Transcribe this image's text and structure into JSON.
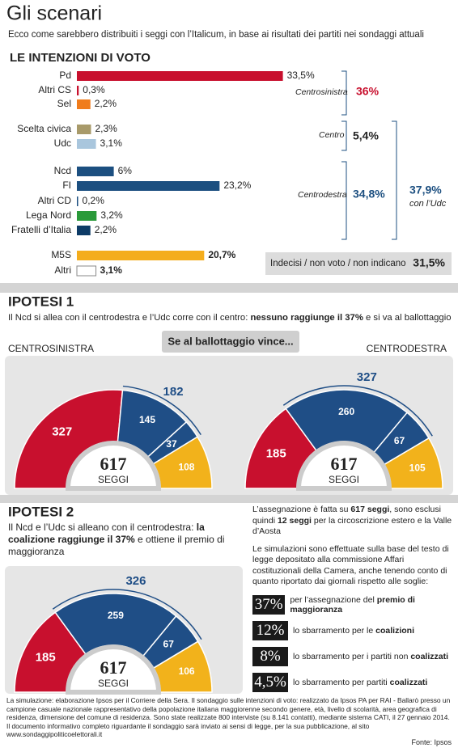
{
  "header": {
    "title": "Gli scenari",
    "subtitle": "Ecco come sarebbero distribuiti i seggi con l’Italicum, in base ai risultati dei partiti nei sondaggi attuali"
  },
  "chart_data": [
    {
      "type": "bar",
      "title": "LE INTENZIONI DI VOTO",
      "categories": [
        "Pd",
        "Altri CS",
        "Sel",
        "Scelta civica",
        "Udc",
        "Ncd",
        "FI",
        "Altri CD",
        "Lega Nord",
        "Fratelli d’Italia",
        "M5S",
        "Altri"
      ],
      "values": [
        33.5,
        0.3,
        2.2,
        2.3,
        3.1,
        6,
        23.2,
        0.2,
        3.2,
        2.2,
        20.7,
        3.1
      ],
      "value_labels": [
        "33,5%",
        "0,3%",
        "2,2%",
        "2,3%",
        "3,1%",
        "6%",
        "23,2%",
        "0,2%",
        "3,2%",
        "2,2%",
        "20,7%",
        "3,1%"
      ],
      "colors": [
        "#c8102e",
        "#c8102e",
        "#f07c1c",
        "#a89a6a",
        "#a9c6dd",
        "#1c4f80",
        "#1c4f80",
        "#1c4f80",
        "#2a9a3a",
        "#0d3b66",
        "#f4ad1d",
        "#ffffff"
      ],
      "groups": [
        {
          "label": "Centrosinistra",
          "value": "36%",
          "color": "#c8102e"
        },
        {
          "label": "Centro",
          "value": "5,4%",
          "color": "#222222"
        },
        {
          "label": "Centrodestra",
          "value": "34,8%",
          "color": "#1c4f80"
        }
      ],
      "combined": {
        "value": "37,9%",
        "label": "con l’Udc"
      },
      "undecided": {
        "label": "Indecisi / non voto / non indicano",
        "value": "31,5%"
      }
    },
    {
      "type": "hemicycle",
      "title": "CENTROSINISTRA",
      "values": [
        327,
        145,
        37,
        108
      ],
      "colors": [
        "#c8102e",
        "#1f4e86",
        "#1f4e86",
        "#f2b21b"
      ],
      "coalition_total": 182,
      "center_value": 617,
      "center_label": "SEGGI"
    },
    {
      "type": "hemicycle",
      "title": "CENTRODESTRA",
      "values": [
        185,
        260,
        67,
        105
      ],
      "colors": [
        "#c8102e",
        "#1f4e86",
        "#1f4e86",
        "#f2b21b"
      ],
      "coalition_total": 327,
      "center_value": 617,
      "center_label": "SEGGI"
    },
    {
      "type": "hemicycle",
      "values": [
        185,
        259,
        67,
        106
      ],
      "colors": [
        "#c8102e",
        "#1f4e86",
        "#1f4e86",
        "#f2b21b"
      ],
      "coalition_total": 326,
      "center_value": 617,
      "center_label": "SEGGI"
    }
  ],
  "ipotesi": [
    {
      "title": "IPOTESI 1",
      "text": [
        "Il Ncd  si allea con il centrodestra e l’Udc corre con il centro: ",
        "nessuno raggiunge il 37%",
        " e si va al ballottaggio"
      ],
      "button": "Se al ballottaggio vince..."
    },
    {
      "title": "IPOTESI 2",
      "text": [
        "Il Ncd e l’Udc  si alleano con il centrodestra: ",
        "la coalizione raggiunge il 37%",
        " e ottiene il premio di maggioranza"
      ]
    }
  ],
  "notes": {
    "paragraphs": [
      [
        "L’assegnazione è fatta su ",
        "617 seggi",
        ", sono esclusi quindi ",
        "12 seggi",
        " per la circoscrizione estero e la Valle d’Aosta"
      ],
      [
        "Le simulazioni sono effettuate sulla base del testo di legge depositato alla commissione Affari costituzionali della Camera, anche tenendo conto di quanto riportato dai giornali rispetto alle soglie:"
      ]
    ],
    "thresholds": [
      {
        "value": "37%",
        "text": [
          "per l’assegnazione del ",
          "premio di maggioranza"
        ]
      },
      {
        "value": "12%",
        "text": [
          "lo sbarramento per le ",
          "coalizioni"
        ]
      },
      {
        "value": "8%",
        "text": [
          "lo sbarramento per i partiti non ",
          "coalizzati"
        ]
      },
      {
        "value": "4,5%",
        "text": [
          "lo sbarramento per partiti ",
          "coalizzati"
        ]
      }
    ]
  },
  "footer": {
    "text": "La simulazione: elaborazione Ipsos per il Corriere della Sera. Il sondaggio sulle intenzioni di voto: realizzato da Ipsos PA per RAI - Ballarò presso un campione casuale nazionale rappresentativo della popolazione italiana maggiorenne secondo genere, età, livello di scolarità, area geografica di residenza, dimensione del comune di residenza. Sono state realizzate 800 interviste (su 8.141 contatti), mediante sistema CATI, il 27 gennaio 2014. Il documento informativo completo riguardante il sondaggio sarà inviato ai sensi di legge, per la sua pubblicazione, al sito www.sondaggipoliticoelettorali.it",
    "source": "Fonte: Ipsos"
  }
}
